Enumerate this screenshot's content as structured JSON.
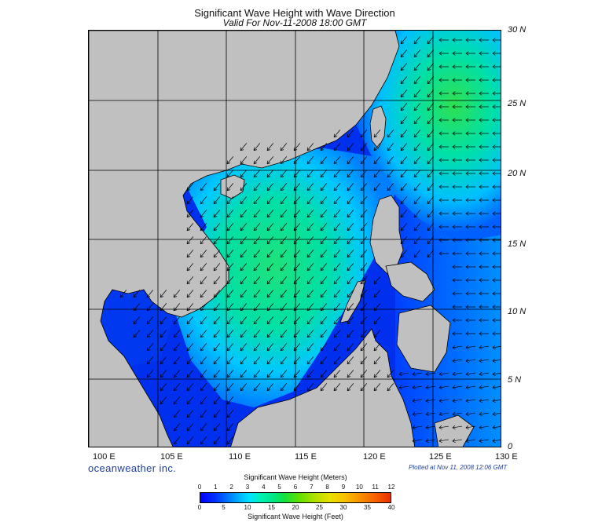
{
  "header": {
    "title": "Significant Wave Height with Wave Direction",
    "subtitle": "Valid For Nov-11-2008 18:00 GMT"
  },
  "map": {
    "region": "South China Sea",
    "lat_labels": [
      "30 N",
      "25 N",
      "20 N",
      "15 N",
      "10 N",
      "5 N",
      "0"
    ],
    "lon_labels": [
      "100 E",
      "105 E",
      "110 E",
      "115 E",
      "120 E",
      "125 E",
      "130 E"
    ],
    "land_color": "#c0c0c0",
    "ocean_low_color": "#0000ff",
    "ocean_mid_color": "#00dcff",
    "ocean_high_color": "#30e070",
    "arrow_color": "#000000"
  },
  "footer": {
    "brand": "oceanweather inc.",
    "plotted": "Plotted at Nov 11, 2008 12:06 GMT"
  },
  "legend": {
    "meters_title": "Significant Wave Height (Meters)",
    "feet_title": "Significant Wave Height (Feet)",
    "meters_ticks": [
      "0",
      "1",
      "2",
      "3",
      "4",
      "5",
      "6",
      "7",
      "8",
      "9",
      "10",
      "11",
      "12"
    ],
    "feet_ticks": [
      "0",
      "5",
      "10",
      "15",
      "20",
      "25",
      "30",
      "35",
      "40"
    ]
  }
}
